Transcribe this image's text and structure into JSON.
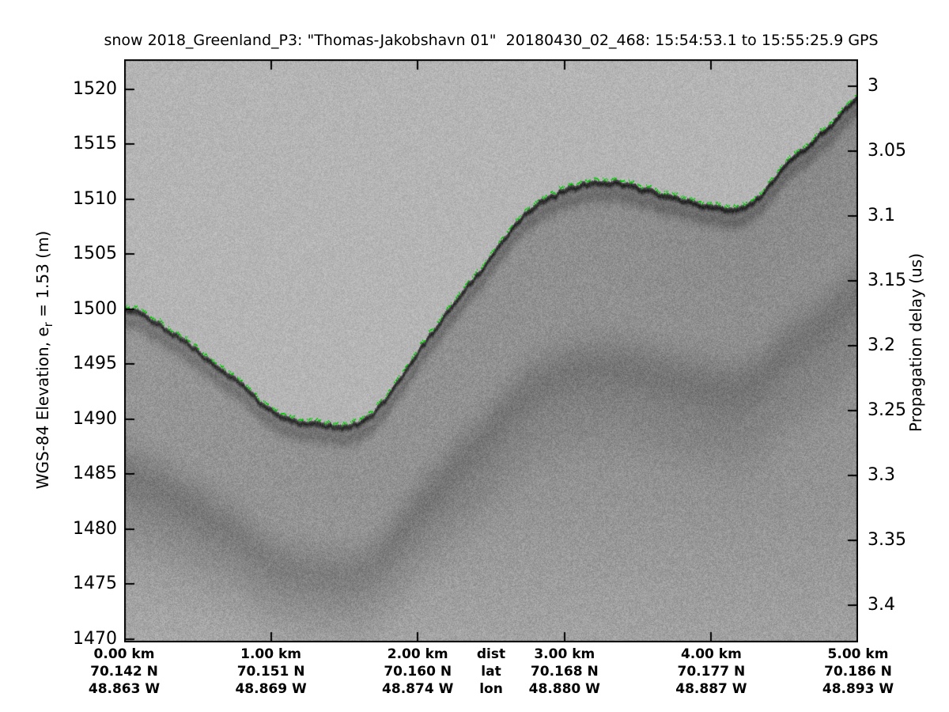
{
  "figure": {
    "title": "snow 2018_Greenland_P3: \"Thomas-Jakobshavn 01\"  20180430_02_468: 15:54:53.1 to 15:55:25.9 GPS",
    "left_axis": {
      "label_prefix": "WGS-84 Elevation, e",
      "label_subscript": "r",
      "label_suffix": " = 1.53 (m)",
      "tick_labels": [
        "1520",
        "1515",
        "1510",
        "1505",
        "1500",
        "1495",
        "1490",
        "1485",
        "1480",
        "1475",
        "1470"
      ]
    },
    "right_axis": {
      "label": "Propagation delay (us)",
      "tick_labels": [
        "3",
        "3.05",
        "3.1",
        "3.15",
        "3.2",
        "3.25",
        "3.3",
        "3.35",
        "3.4"
      ]
    },
    "bottom_axis": {
      "row_headers": [
        "dist",
        "lat",
        "lon"
      ],
      "columns": [
        {
          "dist": "0.00 km",
          "lat": "70.142 N",
          "lon": "48.863 W"
        },
        {
          "dist": "1.00 km",
          "lat": "70.151 N",
          "lon": "48.869 W"
        },
        {
          "dist": "2.00 km",
          "lat": "70.160 N",
          "lon": "48.874 W"
        },
        {
          "dist": "3.00 km",
          "lat": "70.168 N",
          "lon": "48.880 W"
        },
        {
          "dist": "4.00 km",
          "lat": "70.177 N",
          "lon": "48.887 W"
        },
        {
          "dist": "5.00 km",
          "lat": "70.186 N",
          "lon": "48.893 W"
        }
      ]
    }
  },
  "chart_data": {
    "type": "heatmap",
    "subtype": "snow-radar-echogram",
    "title": "snow 2018_Greenland_P3: \"Thomas-Jakobshavn 01\"  20180430_02_468: 15:54:53.1 to 15:55:25.9 GPS",
    "x_axis": {
      "label": "dist",
      "units": "km",
      "range": [
        0,
        5
      ],
      "ticks": [
        0,
        1,
        2,
        3,
        4,
        5
      ]
    },
    "y_axis_left": {
      "label": "WGS-84 Elevation, er = 1.53 (m)",
      "units": "m",
      "range": [
        1469.71,
        1522.73
      ],
      "ticks": [
        1520,
        1515,
        1510,
        1505,
        1500,
        1495,
        1490,
        1485,
        1480,
        1475,
        1470
      ]
    },
    "y_axis_right": {
      "label": "Propagation delay (us)",
      "units": "us",
      "range": [
        2.979,
        3.429
      ],
      "ticks": [
        3,
        3.05,
        3.1,
        3.15,
        3.2,
        3.25,
        3.3,
        3.35,
        3.4
      ]
    },
    "geo_track": {
      "lat_N": [
        70.142,
        70.151,
        70.16,
        70.168,
        70.177,
        70.186
      ],
      "lon_W": [
        48.863,
        48.869,
        48.874,
        48.88,
        48.887,
        48.893
      ]
    },
    "series": [
      {
        "name": "surface-pick",
        "style": "dashed",
        "color": "#00cc00",
        "x_km": [
          0.0,
          0.23,
          0.5,
          0.77,
          1.0,
          1.15,
          1.31,
          1.47,
          1.63,
          1.79,
          1.96,
          2.12,
          2.28,
          2.44,
          2.6,
          2.76,
          2.93,
          3.09,
          3.25,
          3.41,
          3.57,
          3.73,
          3.9,
          4.06,
          4.16,
          4.33,
          4.49,
          4.65,
          4.81,
          5.0
        ],
        "elevation_m": [
          1500.4,
          1498.9,
          1496.4,
          1493.7,
          1491.1,
          1490.2,
          1489.8,
          1489.6,
          1490.1,
          1492.3,
          1495.6,
          1498.6,
          1501.5,
          1503.9,
          1506.9,
          1509.3,
          1510.6,
          1511.5,
          1511.7,
          1511.6,
          1511.0,
          1510.4,
          1509.8,
          1509.4,
          1509.3,
          1510.5,
          1513.2,
          1515.0,
          1517.0,
          1519.5
        ]
      }
    ],
    "image_palette": {
      "air": "#b5b5b5",
      "surface_band": "#383838",
      "subsurface": "#929292"
    }
  }
}
